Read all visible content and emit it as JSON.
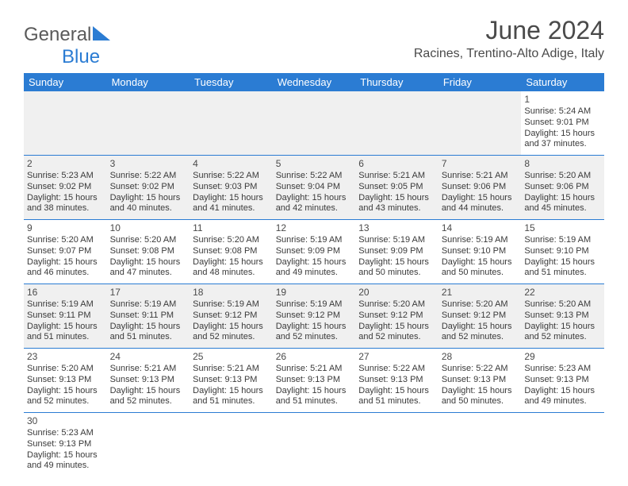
{
  "brand": {
    "text1": "General",
    "text2": "Blue"
  },
  "title": "June 2024",
  "location": "Racines, Trentino-Alto Adige, Italy",
  "colors": {
    "accent": "#2b7cd3",
    "header_bg": "#2b7cd3",
    "grey_row": "#f0f0f0",
    "text": "#3a3a3a"
  },
  "dayHeaders": [
    "Sunday",
    "Monday",
    "Tuesday",
    "Wednesday",
    "Thursday",
    "Friday",
    "Saturday"
  ],
  "weeks": [
    [
      null,
      null,
      null,
      null,
      null,
      null,
      {
        "n": "1",
        "sr": "Sunrise: 5:24 AM",
        "ss": "Sunset: 9:01 PM",
        "dl": "Daylight: 15 hours and 37 minutes."
      }
    ],
    [
      {
        "n": "2",
        "sr": "Sunrise: 5:23 AM",
        "ss": "Sunset: 9:02 PM",
        "dl": "Daylight: 15 hours and 38 minutes."
      },
      {
        "n": "3",
        "sr": "Sunrise: 5:22 AM",
        "ss": "Sunset: 9:02 PM",
        "dl": "Daylight: 15 hours and 40 minutes."
      },
      {
        "n": "4",
        "sr": "Sunrise: 5:22 AM",
        "ss": "Sunset: 9:03 PM",
        "dl": "Daylight: 15 hours and 41 minutes."
      },
      {
        "n": "5",
        "sr": "Sunrise: 5:22 AM",
        "ss": "Sunset: 9:04 PM",
        "dl": "Daylight: 15 hours and 42 minutes."
      },
      {
        "n": "6",
        "sr": "Sunrise: 5:21 AM",
        "ss": "Sunset: 9:05 PM",
        "dl": "Daylight: 15 hours and 43 minutes."
      },
      {
        "n": "7",
        "sr": "Sunrise: 5:21 AM",
        "ss": "Sunset: 9:06 PM",
        "dl": "Daylight: 15 hours and 44 minutes."
      },
      {
        "n": "8",
        "sr": "Sunrise: 5:20 AM",
        "ss": "Sunset: 9:06 PM",
        "dl": "Daylight: 15 hours and 45 minutes."
      }
    ],
    [
      {
        "n": "9",
        "sr": "Sunrise: 5:20 AM",
        "ss": "Sunset: 9:07 PM",
        "dl": "Daylight: 15 hours and 46 minutes."
      },
      {
        "n": "10",
        "sr": "Sunrise: 5:20 AM",
        "ss": "Sunset: 9:08 PM",
        "dl": "Daylight: 15 hours and 47 minutes."
      },
      {
        "n": "11",
        "sr": "Sunrise: 5:20 AM",
        "ss": "Sunset: 9:08 PM",
        "dl": "Daylight: 15 hours and 48 minutes."
      },
      {
        "n": "12",
        "sr": "Sunrise: 5:19 AM",
        "ss": "Sunset: 9:09 PM",
        "dl": "Daylight: 15 hours and 49 minutes."
      },
      {
        "n": "13",
        "sr": "Sunrise: 5:19 AM",
        "ss": "Sunset: 9:09 PM",
        "dl": "Daylight: 15 hours and 50 minutes."
      },
      {
        "n": "14",
        "sr": "Sunrise: 5:19 AM",
        "ss": "Sunset: 9:10 PM",
        "dl": "Daylight: 15 hours and 50 minutes."
      },
      {
        "n": "15",
        "sr": "Sunrise: 5:19 AM",
        "ss": "Sunset: 9:10 PM",
        "dl": "Daylight: 15 hours and 51 minutes."
      }
    ],
    [
      {
        "n": "16",
        "sr": "Sunrise: 5:19 AM",
        "ss": "Sunset: 9:11 PM",
        "dl": "Daylight: 15 hours and 51 minutes."
      },
      {
        "n": "17",
        "sr": "Sunrise: 5:19 AM",
        "ss": "Sunset: 9:11 PM",
        "dl": "Daylight: 15 hours and 51 minutes."
      },
      {
        "n": "18",
        "sr": "Sunrise: 5:19 AM",
        "ss": "Sunset: 9:12 PM",
        "dl": "Daylight: 15 hours and 52 minutes."
      },
      {
        "n": "19",
        "sr": "Sunrise: 5:19 AM",
        "ss": "Sunset: 9:12 PM",
        "dl": "Daylight: 15 hours and 52 minutes."
      },
      {
        "n": "20",
        "sr": "Sunrise: 5:20 AM",
        "ss": "Sunset: 9:12 PM",
        "dl": "Daylight: 15 hours and 52 minutes."
      },
      {
        "n": "21",
        "sr": "Sunrise: 5:20 AM",
        "ss": "Sunset: 9:12 PM",
        "dl": "Daylight: 15 hours and 52 minutes."
      },
      {
        "n": "22",
        "sr": "Sunrise: 5:20 AM",
        "ss": "Sunset: 9:13 PM",
        "dl": "Daylight: 15 hours and 52 minutes."
      }
    ],
    [
      {
        "n": "23",
        "sr": "Sunrise: 5:20 AM",
        "ss": "Sunset: 9:13 PM",
        "dl": "Daylight: 15 hours and 52 minutes."
      },
      {
        "n": "24",
        "sr": "Sunrise: 5:21 AM",
        "ss": "Sunset: 9:13 PM",
        "dl": "Daylight: 15 hours and 52 minutes."
      },
      {
        "n": "25",
        "sr": "Sunrise: 5:21 AM",
        "ss": "Sunset: 9:13 PM",
        "dl": "Daylight: 15 hours and 51 minutes."
      },
      {
        "n": "26",
        "sr": "Sunrise: 5:21 AM",
        "ss": "Sunset: 9:13 PM",
        "dl": "Daylight: 15 hours and 51 minutes."
      },
      {
        "n": "27",
        "sr": "Sunrise: 5:22 AM",
        "ss": "Sunset: 9:13 PM",
        "dl": "Daylight: 15 hours and 51 minutes."
      },
      {
        "n": "28",
        "sr": "Sunrise: 5:22 AM",
        "ss": "Sunset: 9:13 PM",
        "dl": "Daylight: 15 hours and 50 minutes."
      },
      {
        "n": "29",
        "sr": "Sunrise: 5:23 AM",
        "ss": "Sunset: 9:13 PM",
        "dl": "Daylight: 15 hours and 49 minutes."
      }
    ],
    [
      {
        "n": "30",
        "sr": "Sunrise: 5:23 AM",
        "ss": "Sunset: 9:13 PM",
        "dl": "Daylight: 15 hours and 49 minutes."
      },
      null,
      null,
      null,
      null,
      null,
      null
    ]
  ]
}
